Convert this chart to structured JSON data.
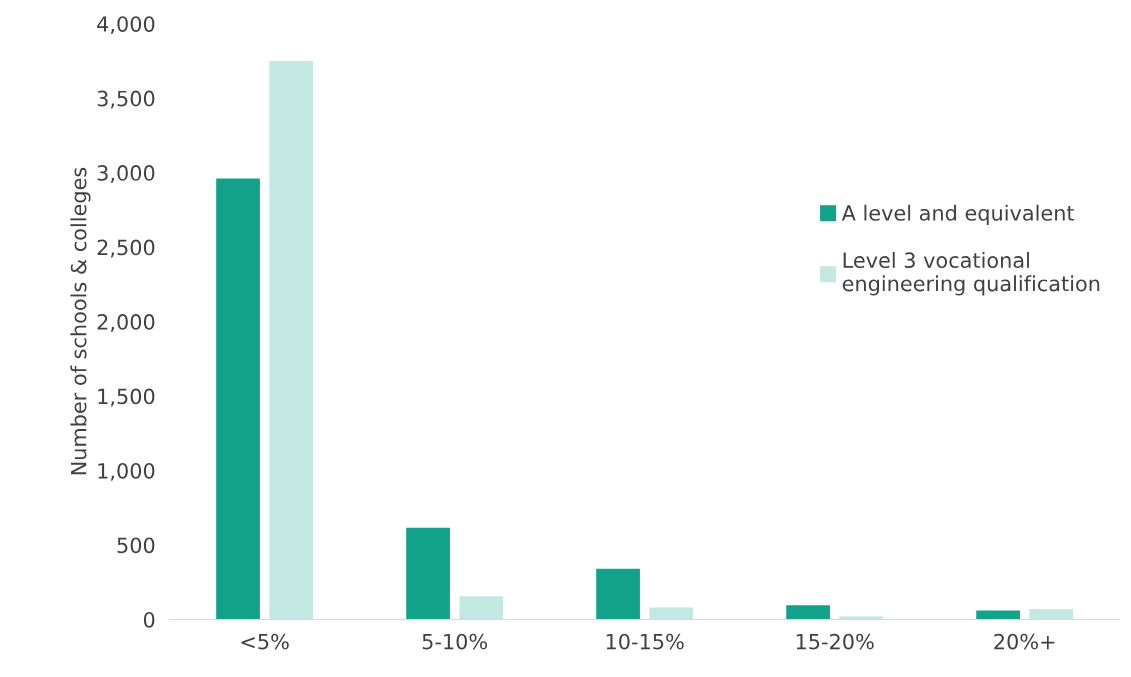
{
  "chart_data": {
    "type": "bar",
    "ylabel": "Number of schools & colleges",
    "categories": [
      "<5%",
      "5-10%",
      "10-15%",
      "15-20%",
      "20%+"
    ],
    "series": [
      {
        "name": "A level and equivalent",
        "color": "#12a28a",
        "values": [
          2960,
          615,
          340,
          95,
          60
        ]
      },
      {
        "name": "Level 3 vocational\nengineering qualification",
        "color": "#c3e7e1",
        "values": [
          3750,
          155,
          80,
          20,
          70
        ]
      }
    ],
    "ylim": [
      0,
      4000
    ],
    "yticks": [
      {
        "value": 0,
        "label": "0"
      },
      {
        "value": 500,
        "label": "500"
      },
      {
        "value": 1000,
        "label": "1,000"
      },
      {
        "value": 1500,
        "label": "1,500"
      },
      {
        "value": 2000,
        "label": "2,000"
      },
      {
        "value": 2500,
        "label": "2,500"
      },
      {
        "value": 3000,
        "label": "3,000"
      },
      {
        "value": 3500,
        "label": "3,500"
      },
      {
        "value": 4000,
        "label": "4,000"
      }
    ],
    "grid": false,
    "legend": "right"
  }
}
